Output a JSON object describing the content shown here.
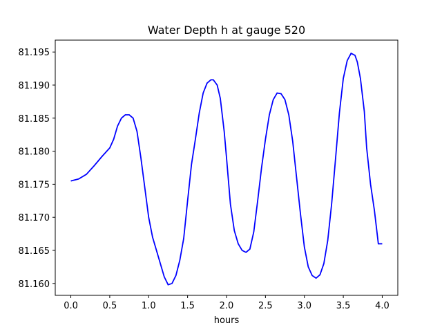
{
  "chart_data": {
    "type": "line",
    "title": "Water Depth h at gauge 520",
    "xlabel": "hours",
    "ylabel": "",
    "xlim": [
      -0.2,
      4.2
    ],
    "ylim": [
      81.1582,
      81.1968
    ],
    "xticks": [
      0.0,
      0.5,
      1.0,
      1.5,
      2.0,
      2.5,
      3.0,
      3.5,
      4.0
    ],
    "xtick_labels": [
      "0.0",
      "0.5",
      "1.0",
      "1.5",
      "2.0",
      "2.5",
      "3.0",
      "3.5",
      "4.0"
    ],
    "yticks": [
      81.16,
      81.165,
      81.17,
      81.175,
      81.18,
      81.185,
      81.19,
      81.195
    ],
    "ytick_labels": [
      "81.160",
      "81.165",
      "81.170",
      "81.175",
      "81.180",
      "81.185",
      "81.190",
      "81.195"
    ],
    "grid": false,
    "series": [
      {
        "color": "#0000ff",
        "x": [
          0.0,
          0.1,
          0.2,
          0.3,
          0.4,
          0.5,
          0.55,
          0.6,
          0.65,
          0.7,
          0.75,
          0.8,
          0.85,
          0.9,
          0.95,
          1.0,
          1.05,
          1.1,
          1.2,
          1.25,
          1.3,
          1.35,
          1.4,
          1.45,
          1.5,
          1.55,
          1.6,
          1.65,
          1.7,
          1.75,
          1.8,
          1.83,
          1.88,
          1.92,
          1.97,
          2.0,
          2.05,
          2.1,
          2.15,
          2.2,
          2.25,
          2.3,
          2.35,
          2.4,
          2.45,
          2.5,
          2.55,
          2.6,
          2.65,
          2.7,
          2.75,
          2.8,
          2.85,
          2.9,
          2.95,
          3.0,
          3.05,
          3.1,
          3.15,
          3.2,
          3.25,
          3.3,
          3.35,
          3.4,
          3.45,
          3.5,
          3.55,
          3.6,
          3.65,
          3.68,
          3.72,
          3.77,
          3.8,
          3.85,
          3.9,
          3.95,
          4.0
        ],
        "y": [
          81.1755,
          81.1758,
          81.1765,
          81.1778,
          81.1792,
          81.1805,
          81.1818,
          81.1838,
          81.185,
          81.1855,
          81.1855,
          81.185,
          81.183,
          81.179,
          81.1745,
          81.17,
          81.167,
          81.165,
          81.161,
          81.1598,
          81.16,
          81.1612,
          81.1635,
          81.1668,
          81.1725,
          81.178,
          81.1818,
          81.1858,
          81.1888,
          81.1903,
          81.1908,
          81.1908,
          81.19,
          81.188,
          81.183,
          81.179,
          81.172,
          81.168,
          81.166,
          81.165,
          81.1647,
          81.1652,
          81.1678,
          81.1725,
          81.1775,
          81.1818,
          81.1855,
          81.1878,
          81.1888,
          81.1887,
          81.1878,
          81.1855,
          81.1815,
          81.176,
          81.1705,
          81.1655,
          81.1625,
          81.1612,
          81.1608,
          81.1613,
          81.163,
          81.1665,
          81.172,
          81.1788,
          81.1858,
          81.191,
          81.1937,
          81.1948,
          81.1945,
          81.1935,
          81.191,
          81.186,
          81.1805,
          81.175,
          81.171,
          81.166,
          81.166
        ]
      }
    ]
  }
}
